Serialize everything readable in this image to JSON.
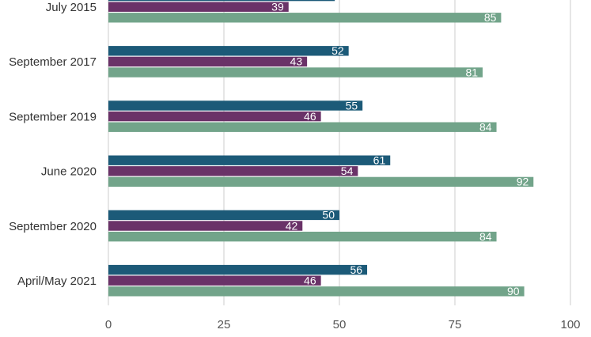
{
  "chart_data": {
    "type": "bar",
    "orientation": "horizontal",
    "categories": [
      "July 2015",
      "September 2017",
      "September 2019",
      "June 2020",
      "September 2020",
      "April/May 2021"
    ],
    "series": [
      {
        "values": [
          49,
          52,
          55,
          61,
          50,
          56
        ],
        "color": "#1c5a78"
      },
      {
        "values": [
          39,
          43,
          46,
          54,
          42,
          46
        ],
        "color": "#6a3268"
      },
      {
        "values": [
          85,
          81,
          84,
          92,
          84,
          90
        ],
        "color": "#72a48a"
      }
    ],
    "xlim": [
      0,
      100
    ],
    "xticks": [
      0,
      25,
      50,
      75,
      100
    ],
    "grid": "vertical",
    "data_labels": true,
    "legend": "none"
  }
}
